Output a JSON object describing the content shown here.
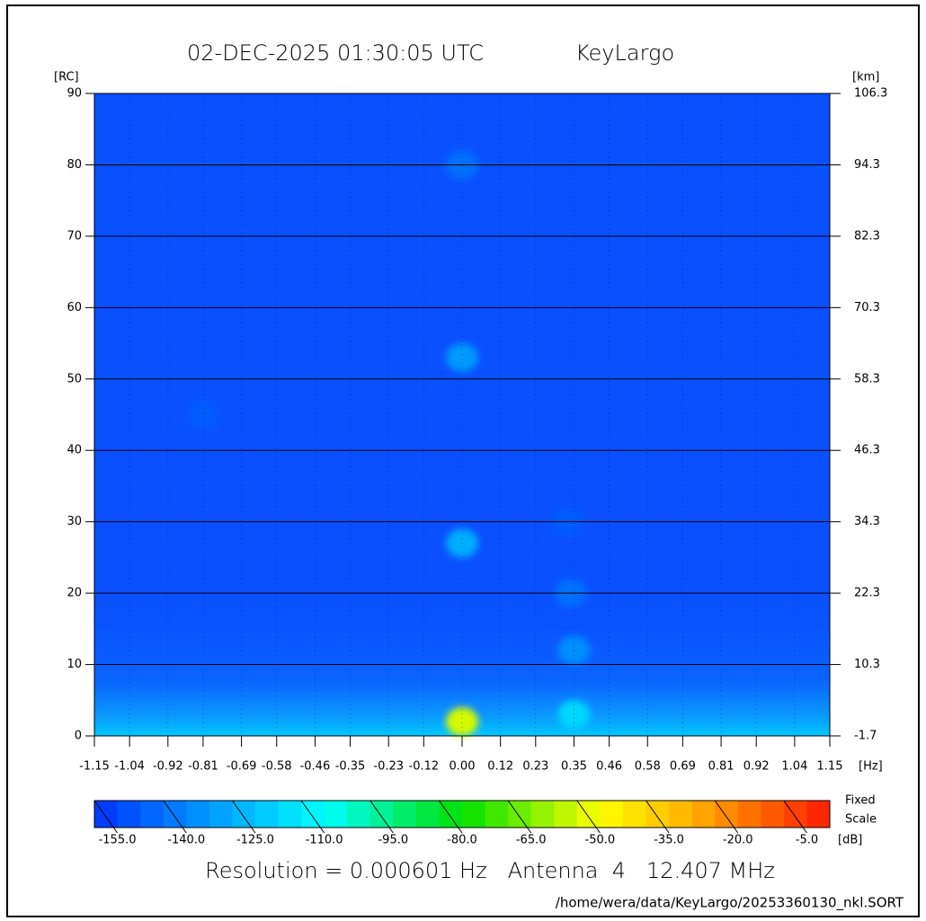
{
  "chart_data": {
    "type": "heatmap",
    "title": "02-DEC-2025 01:30:05 UTC",
    "site": "KeyLargo",
    "ylabel": "[RC]",
    "y2label": "[km]",
    "xlabel": "[Hz]",
    "xlim": [
      -1.15,
      1.15
    ],
    "xticks": [
      -1.15,
      -1.04,
      -0.92,
      -0.81,
      -0.69,
      -0.58,
      -0.46,
      -0.35,
      -0.23,
      -0.12,
      {
        "value": 0,
        "label": "0.00"
      },
      0.12,
      0.23,
      0.35,
      0.46,
      0.58,
      0.69,
      0.81,
      0.92,
      1.04,
      1.15
    ],
    "ylim": [
      0,
      90
    ],
    "yticks": [
      0,
      10,
      20,
      30,
      40,
      50,
      60,
      70,
      80,
      90
    ],
    "y2lim": [
      -1.7,
      106.3
    ],
    "y2ticks": [
      -1.7,
      10.3,
      22.3,
      34.3,
      46.3,
      58.3,
      70.3,
      82.3,
      94.3,
      106.3
    ],
    "grid": true,
    "x": [
      0,
      0,
      0,
      0.35,
      0.35,
      0.34,
      0.33,
      0,
      -0.81
    ],
    "y": [
      80,
      53,
      27,
      3,
      12,
      20,
      30,
      2,
      45
    ],
    "values": [
      -145,
      -135,
      -130,
      -120,
      -138,
      -145,
      -150,
      -55,
      -150
    ],
    "colorbar": {
      "lim": [
        -160,
        0
      ],
      "step": 5,
      "ticks": [
        {
          "value": -155,
          "label": "-155.0"
        },
        {
          "value": -140,
          "label": "-140.0"
        },
        {
          "value": -125,
          "label": "-125.0"
        },
        {
          "value": -110,
          "label": "-110.0"
        },
        {
          "value": -95,
          "label": "-95.0"
        },
        {
          "value": -80,
          "label": "-80.0"
        },
        {
          "value": -65,
          "label": "-65.0"
        },
        {
          "value": -50,
          "label": "-50.0"
        },
        {
          "value": -35,
          "label": "-35.0"
        },
        {
          "value": -20,
          "label": "-20.0"
        },
        {
          "value": -5,
          "label": "-5.0"
        }
      ],
      "unit": "[dB]",
      "note_1": "Fixed",
      "note_2": "Scale",
      "stops": [
        [
          -160,
          "#0033ff"
        ],
        [
          -110,
          "#00ffff"
        ],
        [
          -80,
          "#00e000"
        ],
        [
          -50,
          "#ffff00"
        ],
        [
          -30,
          "#ffb000"
        ],
        [
          0,
          "#ff1a00"
        ]
      ]
    },
    "footer": "Resolution = 0.000601 Hz   Antenna  4   12.407 MHz",
    "path": "/home/wera/data/KeyLargo/20253360130_nkl.SORT"
  }
}
